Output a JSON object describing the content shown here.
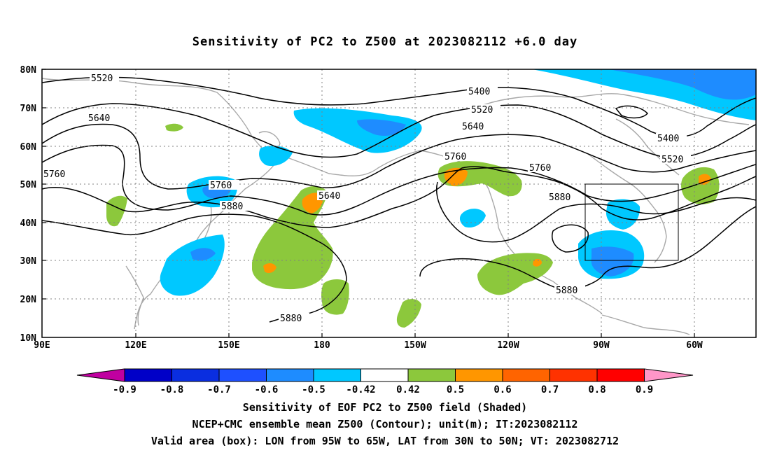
{
  "title": "Sensitivity of PC2 to Z500 at 2023082112 +6.0 day",
  "map": {
    "lat_labels": [
      "80N",
      "70N",
      "60N",
      "50N",
      "40N",
      "30N",
      "20N",
      "10N"
    ],
    "lon_labels": [
      "90E",
      "120E",
      "150E",
      "180",
      "150W",
      "120W",
      "90W",
      "60W"
    ],
    "contour_labels": [
      "5520",
      "5640",
      "5760",
      "5760",
      "5880",
      "5640",
      "5880",
      "5400",
      "5520",
      "5640",
      "5760",
      "5760",
      "5880",
      "5880",
      "5400",
      "5520"
    ],
    "valid_box": {
      "lon_from": "95W",
      "lon_to": "65W",
      "lat_from": "30N",
      "lat_to": "50N"
    },
    "shading_colors": {
      "neg_09": "#c000a0",
      "neg_08": "#0000c8",
      "neg_07": "#0a2ee0",
      "neg_06": "#1e50ff",
      "neg_05": "#1e8cff",
      "neg_042": "#00c8ff",
      "pos_05": "#8cc83c",
      "pos_06": "#ff9600",
      "pos_07": "#ff6400",
      "pos_08": "#ff3200",
      "pos_09": "#ff0000",
      "pos_max": "#ff96c8"
    }
  },
  "colorbar": {
    "labels": [
      "-0.9",
      "-0.8",
      "-0.7",
      "-0.6",
      "-0.5",
      "-0.42",
      "0.42",
      "0.5",
      "0.6",
      "0.7",
      "0.8",
      "0.9"
    ]
  },
  "captions": {
    "line1": "Sensitivity of EOF PC2 to Z500 field (Shaded)",
    "line2": "NCEP+CMC ensemble mean Z500 (Contour); unit(m); IT:2023082112",
    "line3": "Valid area (box): LON from 95W to 65W, LAT from 30N to 50N; VT: 2023082712"
  }
}
